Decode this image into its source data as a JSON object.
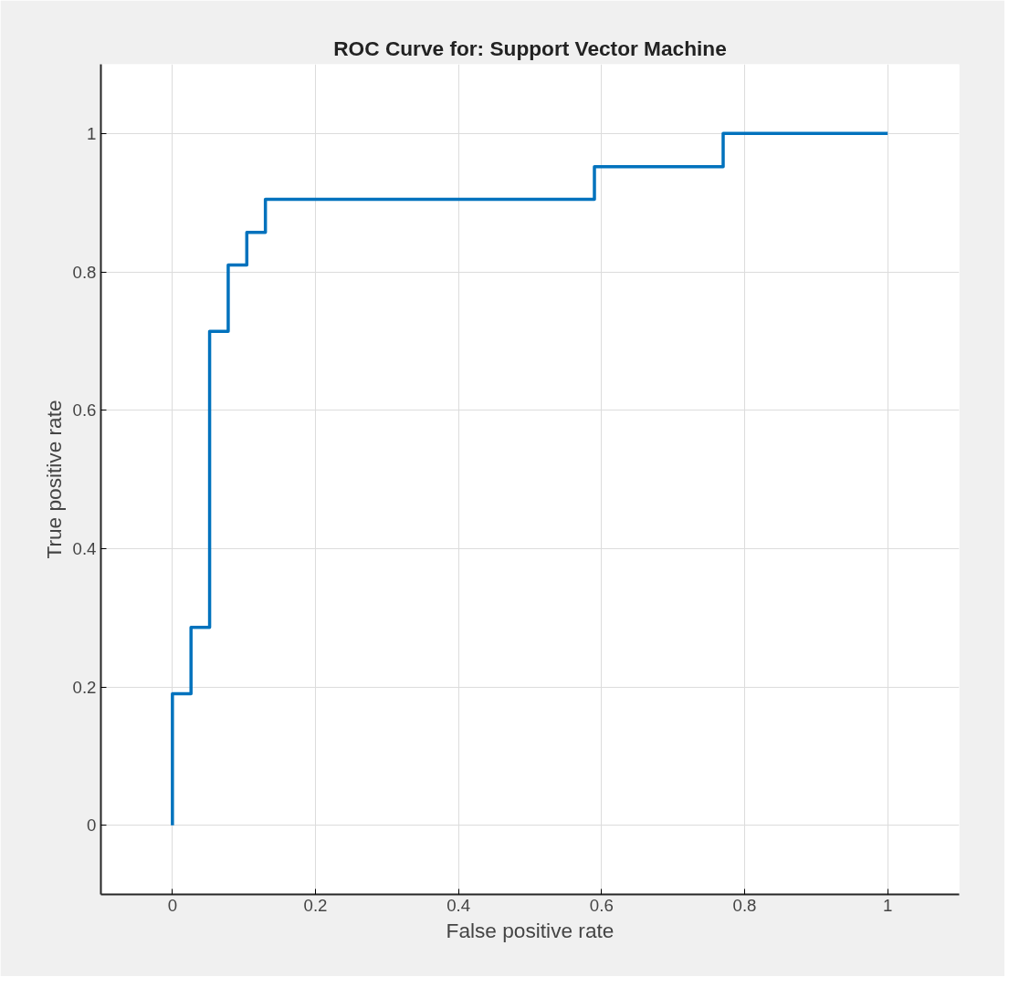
{
  "chart_data": {
    "type": "step",
    "title": "ROC Curve for: Support Vector Machine",
    "xlabel": "False positive rate",
    "ylabel": "True positive rate",
    "x": [
      0,
      0,
      0.026,
      0.052,
      0.078,
      0.104,
      0.13,
      0.59,
      0.77,
      1
    ],
    "series": [
      {
        "color": "#0072bd",
        "values": [
          0,
          0.19,
          0.286,
          0.714,
          0.81,
          0.857,
          0.905,
          0.952,
          1,
          1
        ]
      }
    ],
    "xlim": [
      -0.1,
      1.1
    ],
    "ylim": [
      -0.1,
      1.1
    ],
    "xticks": [
      0,
      0.2,
      0.4,
      0.6,
      0.8,
      1
    ],
    "yticks": [
      0,
      0.2,
      0.4,
      0.6,
      0.8,
      1
    ],
    "grid": true,
    "line_style": "solid",
    "marker": "none"
  }
}
